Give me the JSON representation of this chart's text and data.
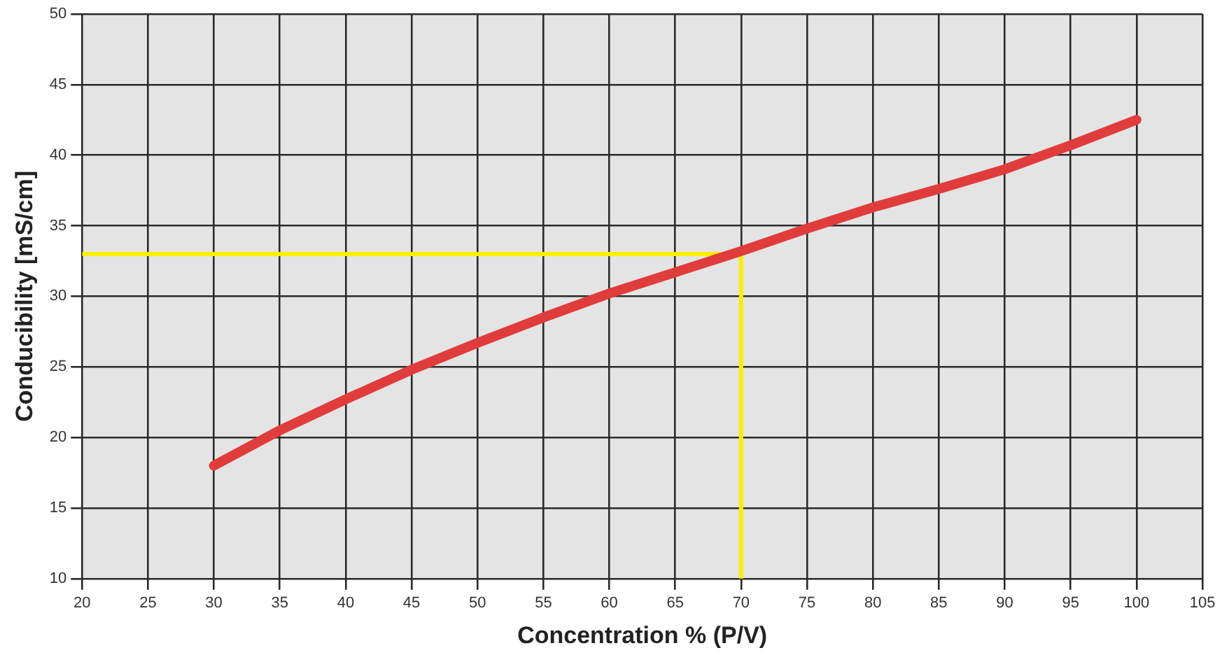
{
  "chart_data": {
    "type": "line",
    "xlabel": "Concentration % (P/V)",
    "ylabel": "Conducibility [mS/cm]",
    "xlim": [
      20,
      105
    ],
    "xticks": [
      20,
      25,
      30,
      35,
      40,
      45,
      50,
      55,
      60,
      65,
      70,
      75,
      80,
      85,
      90,
      95,
      100,
      105
    ],
    "ylim": [
      10,
      50
    ],
    "yticks": [
      10,
      15,
      20,
      25,
      30,
      35,
      40,
      45,
      50
    ],
    "grid": true,
    "legend": false,
    "marker": "none",
    "line_style": "solid",
    "series": [
      {
        "color": "#e03c3c",
        "x": [
          30,
          35,
          40,
          45,
          50,
          55,
          60,
          65,
          70,
          75,
          80,
          85,
          90,
          95,
          100
        ],
        "values": [
          18,
          20.5,
          22.7,
          24.8,
          26.7,
          28.5,
          30.2,
          31.7,
          33.2,
          34.8,
          36.3,
          37.6,
          39,
          40.7,
          42.5
        ]
      },
      {
        "color": "#ffee00",
        "x": [
          20,
          70,
          70
        ],
        "values": [
          33,
          33,
          10
        ]
      }
    ]
  }
}
